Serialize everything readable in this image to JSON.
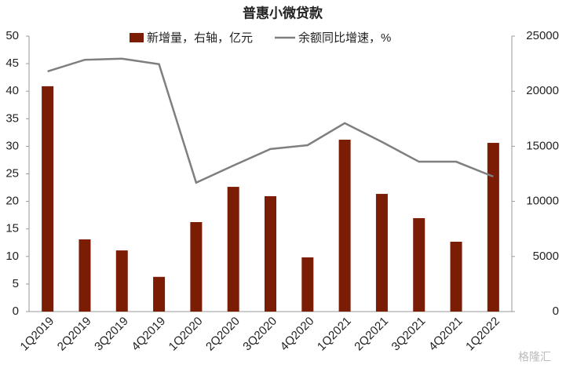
{
  "chart_data": {
    "type": "bar-line",
    "title": "普惠小微贷款",
    "categories": [
      "1Q2019",
      "2Q2019",
      "3Q2019",
      "4Q2019",
      "1Q2020",
      "2Q2020",
      "3Q2020",
      "4Q2020",
      "1Q2021",
      "2Q2021",
      "3Q2021",
      "4Q2021",
      "1Q2022"
    ],
    "series": [
      {
        "name": "新增量，右轴，亿元",
        "type": "bar",
        "axis": "y2",
        "color": "#7b1c05",
        "values": [
          20450,
          6550,
          5550,
          3150,
          8120,
          11320,
          10470,
          4920,
          15600,
          10680,
          8480,
          6340,
          15310
        ]
      },
      {
        "name": "余额同比增速，%",
        "type": "line",
        "axis": "y",
        "color": "#7f7f7f",
        "values": [
          43.6,
          45.7,
          45.9,
          44.9,
          23.4,
          26.5,
          29.5,
          30.2,
          34.2,
          30.8,
          27.2,
          27.2,
          24.5
        ]
      }
    ],
    "ylim": [
      0,
      50
    ],
    "yticks": [
      0,
      5,
      10,
      15,
      20,
      25,
      30,
      35,
      40,
      45,
      50
    ],
    "y2lim": [
      0,
      25000
    ],
    "y2ticks": [
      0,
      5000,
      10000,
      15000,
      20000,
      25000
    ],
    "watermark": "格隆汇"
  }
}
